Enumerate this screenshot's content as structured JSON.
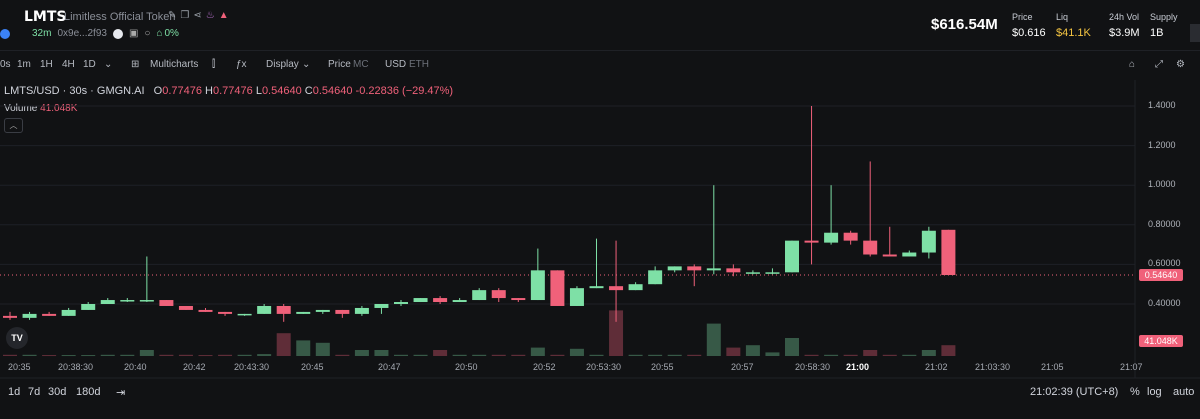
{
  "header": {
    "symbol": "LMTS",
    "token_name": "Limitless Official Token",
    "age": "32m",
    "address": "0x9e...2f93",
    "holder_pct": "0%",
    "market_cap": "$616.54M",
    "stats": [
      {
        "label": "Price",
        "value": "$0.616",
        "color": "#ffffff"
      },
      {
        "label": "Liq",
        "value": "$41.1K",
        "color": "#f5c542"
      },
      {
        "label": "24h Vol",
        "value": "$3.9M",
        "color": "#ffffff"
      },
      {
        "label": "Supply",
        "value": "1B",
        "color": "#ffffff"
      }
    ]
  },
  "toolbar": {
    "intervals": [
      "0s",
      "1m",
      "1H",
      "4H",
      "1D"
    ],
    "multicharts_label": "Multicharts",
    "display_label": "Display",
    "price_label": "Price",
    "mc_label": "MC",
    "usd_label": "USD",
    "eth_label": "ETH"
  },
  "legend": {
    "pair": "LMTS/USD · 30s · GMGN.AI",
    "o_label": "O",
    "o": "0.77476",
    "h_label": "H",
    "h": "0.77476",
    "l_label": "L",
    "l": "0.54640",
    "c_label": "C",
    "c": "0.54640",
    "change": "-0.22836 (−29.47%)",
    "volume_label": "Volume",
    "volume": "41.048K"
  },
  "price_axis": [
    "1.4000",
    "1.2000",
    "1.0000",
    "0.80000",
    "0.60000",
    "0.40000"
  ],
  "current_price_tag": "0.54640",
  "volume_tag": "41.048K",
  "time_axis": [
    "20:35",
    "20:38:30",
    "20:40",
    "20:42",
    "20:43:30",
    "20:45",
    "20:47",
    "20:50",
    "20:52",
    "20:53:30",
    "20:55",
    "20:57",
    "20:58:30",
    "21:00",
    "21:02",
    "21:03:30",
    "21:05",
    "21:07"
  ],
  "footer": {
    "ranges": [
      "1d",
      "7d",
      "30d",
      "180d"
    ],
    "clock": "21:02:39 (UTC+8)",
    "pct_label": "%",
    "log_label": "log",
    "auto_label": "auto"
  },
  "colors": {
    "up": "#7ee0a6",
    "down": "#f0617a",
    "background": "#111214",
    "grid": "#1e2026"
  },
  "chart_data": {
    "type": "candlestick",
    "title": "LMTS/USD · 30s · GMGN.AI",
    "ylim": [
      0.3,
      1.48
    ],
    "ylabel": "",
    "xlabel": "",
    "candles": [
      {
        "o": 0.34,
        "h": 0.36,
        "l": 0.32,
        "c": 0.33
      },
      {
        "o": 0.33,
        "h": 0.36,
        "l": 0.32,
        "c": 0.35
      },
      {
        "o": 0.35,
        "h": 0.36,
        "l": 0.34,
        "c": 0.34
      },
      {
        "o": 0.34,
        "h": 0.38,
        "l": 0.34,
        "c": 0.37
      },
      {
        "o": 0.37,
        "h": 0.41,
        "l": 0.37,
        "c": 0.4
      },
      {
        "o": 0.4,
        "h": 0.43,
        "l": 0.4,
        "c": 0.42
      },
      {
        "o": 0.42,
        "h": 0.43,
        "l": 0.41,
        "c": 0.42
      },
      {
        "o": 0.42,
        "h": 0.64,
        "l": 0.41,
        "c": 0.42
      },
      {
        "o": 0.42,
        "h": 0.42,
        "l": 0.39,
        "c": 0.39
      },
      {
        "o": 0.39,
        "h": 0.39,
        "l": 0.37,
        "c": 0.37
      },
      {
        "o": 0.37,
        "h": 0.38,
        "l": 0.36,
        "c": 0.36
      },
      {
        "o": 0.36,
        "h": 0.36,
        "l": 0.34,
        "c": 0.35
      },
      {
        "o": 0.35,
        "h": 0.35,
        "l": 0.34,
        "c": 0.35
      },
      {
        "o": 0.35,
        "h": 0.4,
        "l": 0.35,
        "c": 0.39
      },
      {
        "o": 0.39,
        "h": 0.4,
        "l": 0.31,
        "c": 0.35
      },
      {
        "o": 0.35,
        "h": 0.36,
        "l": 0.35,
        "c": 0.36
      },
      {
        "o": 0.36,
        "h": 0.37,
        "l": 0.35,
        "c": 0.37
      },
      {
        "o": 0.37,
        "h": 0.37,
        "l": 0.33,
        "c": 0.35
      },
      {
        "o": 0.35,
        "h": 0.39,
        "l": 0.34,
        "c": 0.38
      },
      {
        "o": 0.38,
        "h": 0.4,
        "l": 0.35,
        "c": 0.4
      },
      {
        "o": 0.4,
        "h": 0.42,
        "l": 0.39,
        "c": 0.41
      },
      {
        "o": 0.41,
        "h": 0.43,
        "l": 0.41,
        "c": 0.43
      },
      {
        "o": 0.43,
        "h": 0.44,
        "l": 0.4,
        "c": 0.41
      },
      {
        "o": 0.41,
        "h": 0.43,
        "l": 0.41,
        "c": 0.42
      },
      {
        "o": 0.42,
        "h": 0.48,
        "l": 0.42,
        "c": 0.47
      },
      {
        "o": 0.47,
        "h": 0.48,
        "l": 0.41,
        "c": 0.43
      },
      {
        "o": 0.43,
        "h": 0.43,
        "l": 0.41,
        "c": 0.42
      },
      {
        "o": 0.42,
        "h": 0.68,
        "l": 0.42,
        "c": 0.57
      },
      {
        "o": 0.57,
        "h": 0.57,
        "l": 0.39,
        "c": 0.39
      },
      {
        "o": 0.39,
        "h": 0.49,
        "l": 0.39,
        "c": 0.48
      },
      {
        "o": 0.48,
        "h": 0.73,
        "l": 0.48,
        "c": 0.49
      },
      {
        "o": 0.49,
        "h": 0.72,
        "l": 0.31,
        "c": 0.47
      },
      {
        "o": 0.47,
        "h": 0.51,
        "l": 0.47,
        "c": 0.5
      },
      {
        "o": 0.5,
        "h": 0.59,
        "l": 0.5,
        "c": 0.57
      },
      {
        "o": 0.57,
        "h": 0.59,
        "l": 0.56,
        "c": 0.59
      },
      {
        "o": 0.59,
        "h": 0.6,
        "l": 0.49,
        "c": 0.57
      },
      {
        "o": 0.57,
        "h": 1.0,
        "l": 0.55,
        "c": 0.58
      },
      {
        "o": 0.58,
        "h": 0.6,
        "l": 0.54,
        "c": 0.56
      },
      {
        "o": 0.56,
        "h": 0.57,
        "l": 0.55,
        "c": 0.56
      },
      {
        "o": 0.56,
        "h": 0.58,
        "l": 0.55,
        "c": 0.56
      },
      {
        "o": 0.56,
        "h": 0.72,
        "l": 0.56,
        "c": 0.72
      },
      {
        "o": 0.72,
        "h": 1.4,
        "l": 0.6,
        "c": 0.71
      },
      {
        "o": 0.71,
        "h": 1.0,
        "l": 0.7,
        "c": 0.76
      },
      {
        "o": 0.76,
        "h": 0.77,
        "l": 0.7,
        "c": 0.72
      },
      {
        "o": 0.72,
        "h": 1.12,
        "l": 0.64,
        "c": 0.65
      },
      {
        "o": 0.65,
        "h": 0.79,
        "l": 0.64,
        "c": 0.64
      },
      {
        "o": 0.64,
        "h": 0.67,
        "l": 0.64,
        "c": 0.66
      },
      {
        "o": 0.66,
        "h": 0.79,
        "l": 0.63,
        "c": 0.77
      },
      {
        "o": 0.77476,
        "h": 0.77476,
        "l": 0.5464,
        "c": 0.5464
      }
    ],
    "volumes": [
      0.05,
      0.05,
      0.04,
      0.04,
      0.04,
      0.05,
      0.05,
      0.25,
      0.05,
      0.05,
      0.04,
      0.05,
      0.05,
      0.08,
      0.95,
      0.65,
      0.55,
      0.05,
      0.25,
      0.25,
      0.05,
      0.05,
      0.25,
      0.05,
      0.05,
      0.05,
      0.05,
      0.35,
      0.05,
      0.3,
      0.05,
      1.9,
      0.05,
      0.05,
      0.05,
      0.05,
      1.35,
      0.35,
      0.45,
      0.15,
      0.75,
      0.05,
      0.05,
      0.05,
      0.25,
      0.05,
      0.05,
      0.25,
      0.45
    ]
  }
}
